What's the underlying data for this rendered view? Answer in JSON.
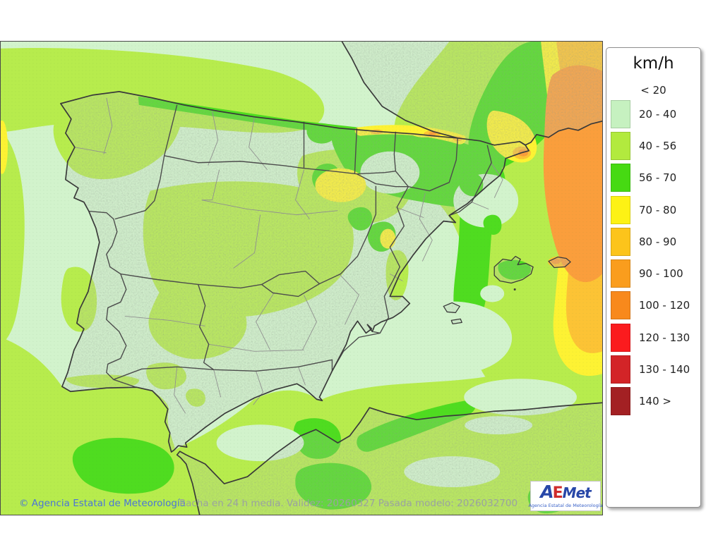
{
  "legend": {
    "title": "km/h",
    "no_swatch_label": "< 20",
    "items": [
      {
        "label": "20 - 40",
        "color": "#c6f1c0"
      },
      {
        "label": "40 - 56",
        "color": "#b2ea3e"
      },
      {
        "label": "56 - 70",
        "color": "#46da12"
      },
      {
        "label": "70 - 80",
        "color": "#fdf215"
      },
      {
        "label": "80 - 90",
        "color": "#fcc41b"
      },
      {
        "label": "90 - 100",
        "color": "#fa9d1d"
      },
      {
        "label": "100 - 120",
        "color": "#f8891c"
      },
      {
        "label": "120 - 130",
        "color": "#fb1b1e"
      },
      {
        "label": "130 - 140",
        "color": "#d32427"
      },
      {
        "label": "140 >",
        "color": "#a32023"
      }
    ]
  },
  "map": {
    "colors": {
      "sea_20_40": "#d2f3cc",
      "band_40_56": "#b7ec4d",
      "band_56_70": "#4fdc20",
      "band_70_80": "#fdf233",
      "band_80_90": "#fcc335",
      "band_90_100": "#fa9e3c",
      "land_tint": "#c2cfc0",
      "coast_line": "#3a3a3a",
      "region_line": "#4c4c4c",
      "province_line": "#909090"
    }
  },
  "footer": {
    "copyright": "© Agencia Estatal de Meteorología",
    "model_info": "Racha en 24 h media. Validez: 20260327 Pasada modelo: 2026032700"
  },
  "logo": {
    "part_a": "A",
    "part_e": "E",
    "part_met": "Met",
    "subtitle": "Agencia Estatal de Meteorología"
  }
}
